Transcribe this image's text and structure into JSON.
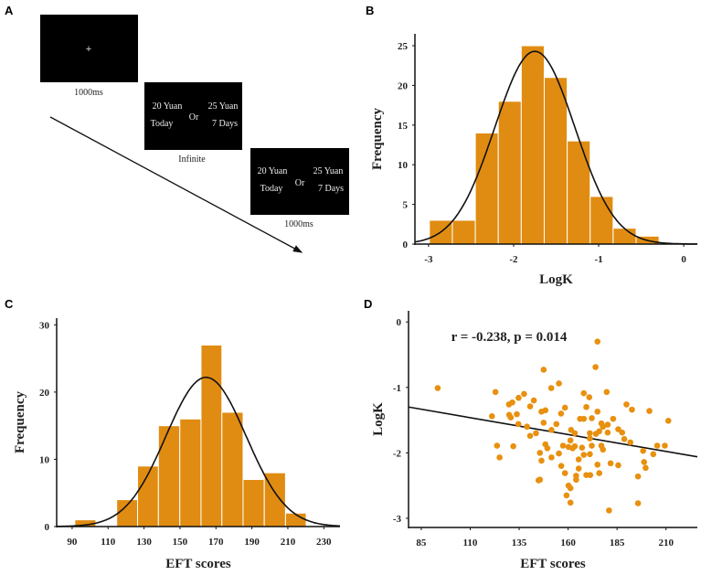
{
  "panel_a": {
    "label": "A",
    "fixation": {
      "symbol": "+",
      "duration": "1000ms"
    },
    "choice": {
      "left_amount": "20 Yuan",
      "left_delay": "Today",
      "or": "Or",
      "right_amount": "25 Yuan",
      "right_delay": "7 Days",
      "duration": "Infinite"
    },
    "feedback": {
      "left_amount": "20 Yuan",
      "left_delay": "Today",
      "or": "Or",
      "right_amount": "25 Yuan",
      "right_delay": "7 Days",
      "duration": "1000ms",
      "highlight_color": "#1a1ad0"
    }
  },
  "colors": {
    "bar": "#e08c12",
    "point": "#e8900f",
    "line": "#111111"
  },
  "chart_data": [
    {
      "panel": "B",
      "type": "bar",
      "xlabel": "LogK",
      "ylabel": "Frequency",
      "xlim": [
        -3.16,
        0.16
      ],
      "ylim": [
        0,
        26.5
      ],
      "xticks": [
        -3,
        -2,
        -1,
        0
      ],
      "yticks": [
        0,
        5,
        10,
        15,
        20,
        25
      ],
      "bin_edges": [
        -2.99,
        -2.72,
        -2.45,
        -2.18,
        -1.91,
        -1.64,
        -1.37,
        -1.1,
        -0.83,
        -0.56,
        -0.29
      ],
      "values": [
        3,
        3,
        14,
        18,
        25,
        21,
        13,
        6,
        2,
        1
      ],
      "normal_curve": {
        "mean": -1.75,
        "sd": 0.47,
        "n": 106
      }
    },
    {
      "panel": "C",
      "type": "bar",
      "xlabel": "EFT scores",
      "ylabel": "Frequency",
      "xlim": [
        81.4,
        239
      ],
      "ylim": [
        0,
        31
      ],
      "xticks": [
        90,
        110,
        130,
        150,
        170,
        190,
        210,
        230
      ],
      "yticks": [
        0,
        10,
        20,
        30
      ],
      "bin_edges": [
        91.5,
        103.2,
        114.8,
        126.4,
        138,
        149.9,
        161.7,
        173.3,
        185.1,
        196.9,
        208.7,
        220.2
      ],
      "values": [
        1,
        0,
        4,
        9,
        15,
        16,
        27,
        17,
        7,
        8,
        2
      ],
      "normal_curve": {
        "mean": 164.5,
        "sd": 22.3,
        "n": 106
      }
    },
    {
      "panel": "D",
      "type": "scatter",
      "xlabel": "EFT scores",
      "ylabel": "LogK",
      "annotation": "r = -0.238, p = 0.014",
      "xlim": [
        78.5,
        226
      ],
      "ylim": [
        -3.14,
        0.17
      ],
      "xticks": [
        85,
        110,
        135,
        160,
        185,
        210
      ],
      "yticks": [
        0,
        -1,
        -2,
        -3
      ],
      "regression": {
        "slope": -0.00515,
        "intercept": -0.896
      },
      "points": [
        [
          93.4,
          -1.01
        ],
        [
          122.9,
          -1.07
        ],
        [
          121.1,
          -1.44
        ],
        [
          123.7,
          -1.89
        ],
        [
          125,
          -2.07
        ],
        [
          129.8,
          -1.26
        ],
        [
          131.5,
          -1.23
        ],
        [
          129.9,
          -1.42
        ],
        [
          130.7,
          -1.46
        ],
        [
          132,
          -1.9
        ],
        [
          133.8,
          -1.41
        ],
        [
          134.7,
          -1.16
        ],
        [
          134.6,
          -1.56
        ],
        [
          137.5,
          -1.1
        ],
        [
          139,
          -1.6
        ],
        [
          140.6,
          -1.29
        ],
        [
          140.6,
          -1.74
        ],
        [
          142.5,
          -1.2
        ],
        [
          143.6,
          -1.7
        ],
        [
          145.6,
          -2.0
        ],
        [
          144.9,
          -2.42
        ],
        [
          145.6,
          -2.41
        ],
        [
          146.4,
          -2.12
        ],
        [
          146.4,
          -1.37
        ],
        [
          147.5,
          -0.73
        ],
        [
          147.5,
          -1.54
        ],
        [
          148.4,
          -1.35
        ],
        [
          148.4,
          -1.87
        ],
        [
          149.4,
          -1.93
        ],
        [
          151.4,
          -1.01
        ],
        [
          151.5,
          -1.65
        ],
        [
          151.5,
          -2.07
        ],
        [
          154,
          -1.56
        ],
        [
          155.3,
          -0.94
        ],
        [
          155.3,
          -2.01
        ],
        [
          156.4,
          -1.4
        ],
        [
          156.5,
          -2.2
        ],
        [
          157.4,
          -1.89
        ],
        [
          158.4,
          -1.31
        ],
        [
          158.4,
          -2.31
        ],
        [
          159.2,
          -2.65
        ],
        [
          160.2,
          -2.5
        ],
        [
          160.2,
          -1.91
        ],
        [
          161.2,
          -2.54
        ],
        [
          161.2,
          -2.76
        ],
        [
          161.5,
          -1.65
        ],
        [
          161.2,
          -1.81
        ],
        [
          162.3,
          -1.93
        ],
        [
          163.4,
          -1.7
        ],
        [
          163.4,
          -1.9
        ],
        [
          164.1,
          -2.35
        ],
        [
          164.1,
          -2.41
        ],
        [
          165.4,
          -2.1
        ],
        [
          165.4,
          -2.24
        ],
        [
          166.1,
          -1.48
        ],
        [
          167.1,
          -1.92
        ],
        [
          168,
          -1.48
        ],
        [
          168,
          -1.09
        ],
        [
          168,
          -2.03
        ],
        [
          169.3,
          -1.3
        ],
        [
          169.3,
          -2.34
        ],
        [
          170.8,
          -1.15
        ],
        [
          171.1,
          -1.7
        ],
        [
          171.1,
          -1.78
        ],
        [
          171.1,
          -2.02
        ],
        [
          171.3,
          -2.34
        ],
        [
          172.1,
          -1.47
        ],
        [
          172.1,
          -1.89
        ],
        [
          174,
          -0.69
        ],
        [
          174.2,
          -1.71
        ],
        [
          175,
          -0.3
        ],
        [
          175,
          -1.37
        ],
        [
          175,
          -2.18
        ],
        [
          175.9,
          -1.67
        ],
        [
          175.9,
          -2.31
        ],
        [
          177,
          -1.55
        ],
        [
          177,
          -1.89
        ],
        [
          177.8,
          -1.6
        ],
        [
          177.8,
          -1.95
        ],
        [
          179.7,
          -1.07
        ],
        [
          180.2,
          -1.57
        ],
        [
          180.2,
          -1.69
        ],
        [
          181.7,
          -2.16
        ],
        [
          180.9,
          -2.88
        ],
        [
          183,
          -1.48
        ],
        [
          185.6,
          -1.64
        ],
        [
          185.6,
          -2.19
        ],
        [
          187.6,
          -1.69
        ],
        [
          188.7,
          -1.79
        ],
        [
          189.8,
          -1.26
        ],
        [
          191.8,
          -1.84
        ],
        [
          192.6,
          -1.34
        ],
        [
          195.7,
          -2.36
        ],
        [
          195.7,
          -2.77
        ],
        [
          198.3,
          -1.97
        ],
        [
          198.8,
          -2.14
        ],
        [
          199.6,
          -2.23
        ],
        [
          201.5,
          -1.36
        ],
        [
          203.5,
          -2.02
        ],
        [
          205.5,
          -1.89
        ],
        [
          209.4,
          -1.89
        ],
        [
          211.2,
          -1.51
        ]
      ]
    }
  ]
}
